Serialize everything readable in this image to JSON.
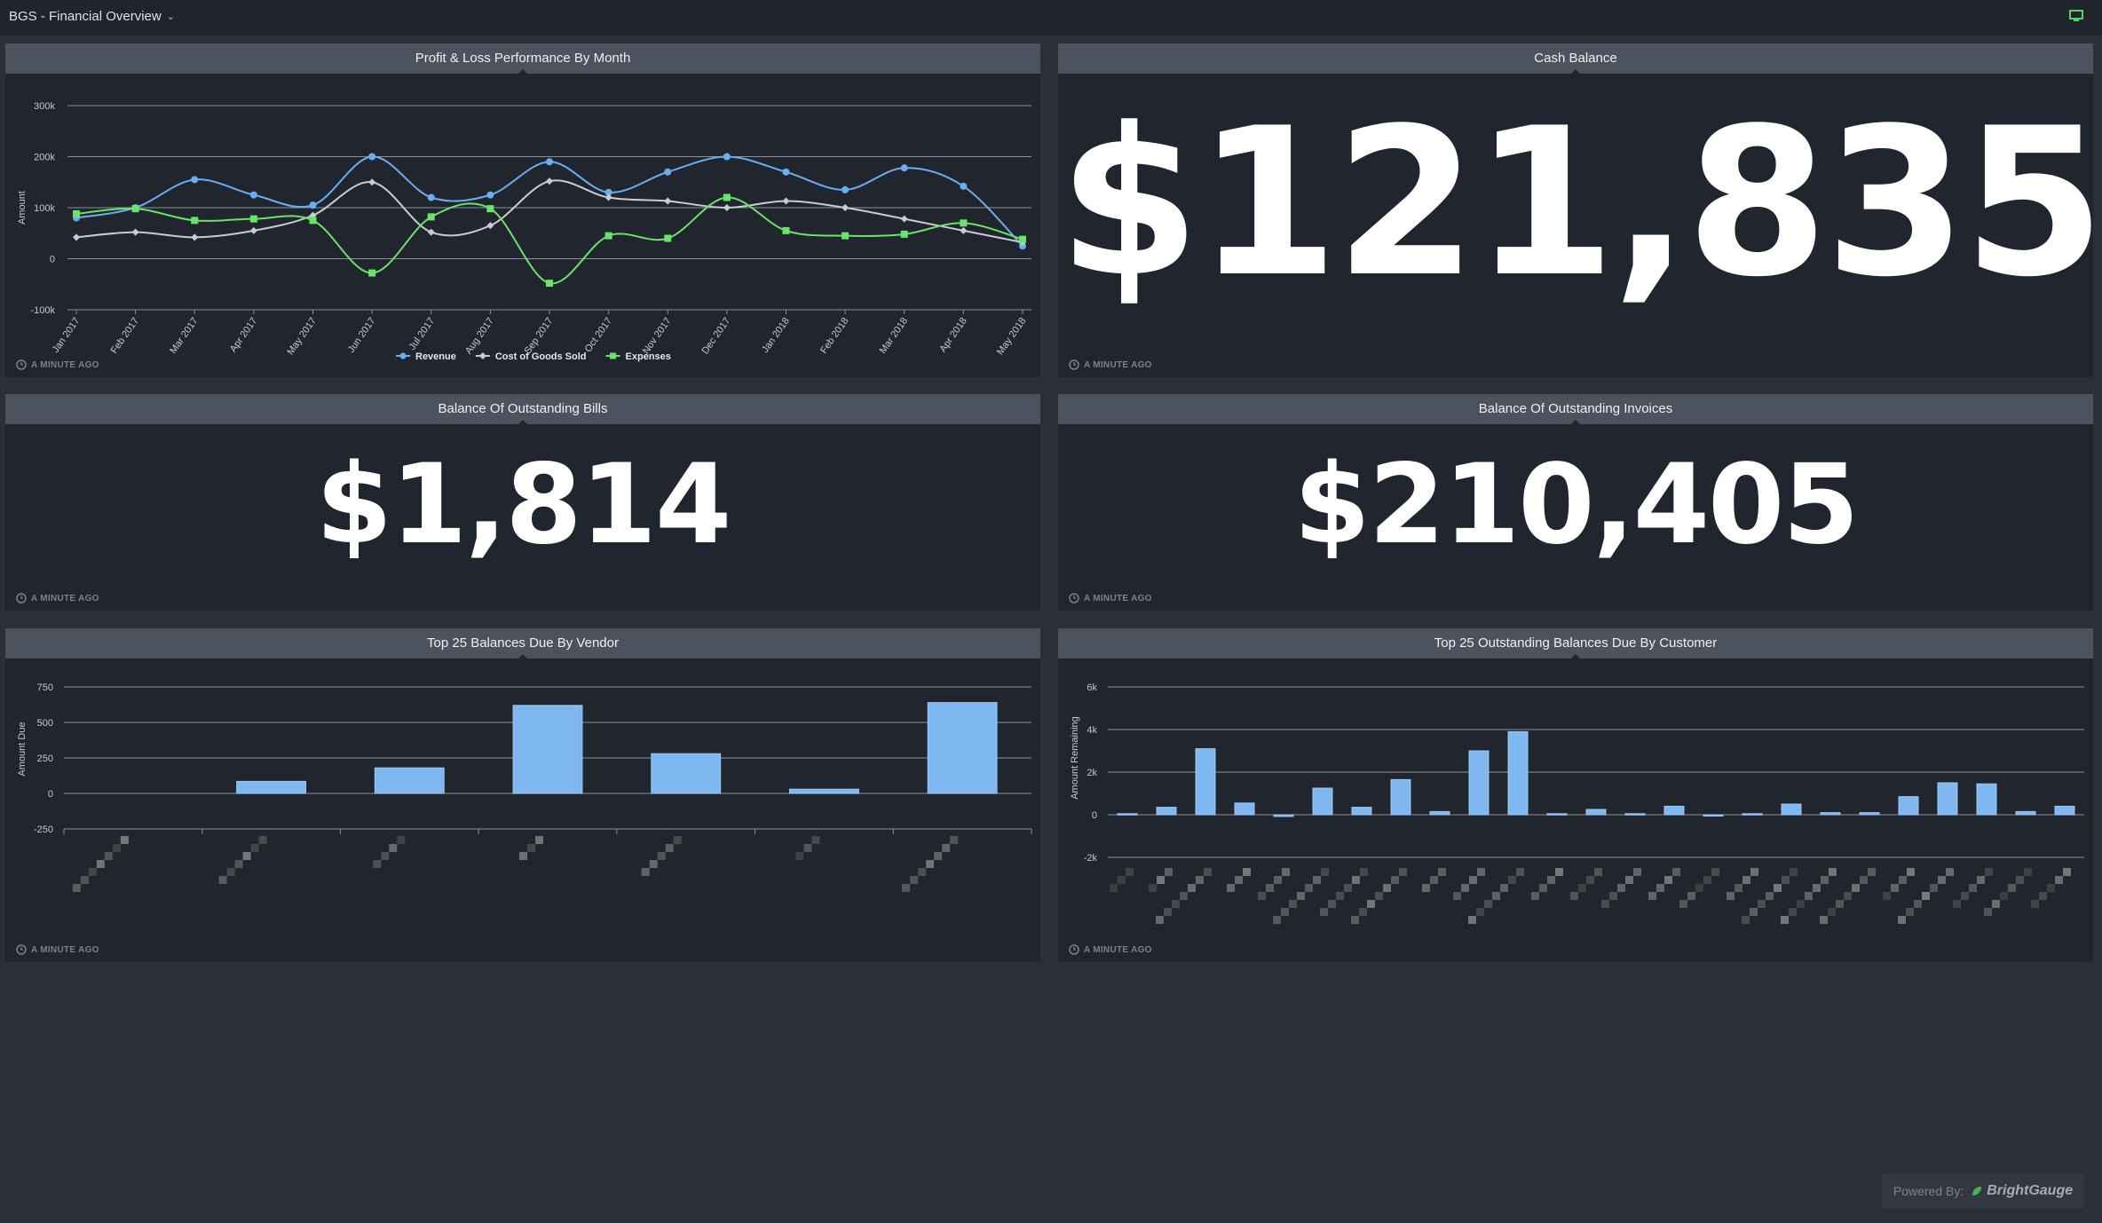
{
  "header": {
    "dashboard_title": "BGS - Financial Overview"
  },
  "colors": {
    "background": "#2b2f38",
    "panel": "#21252d",
    "panel_header": "#4d535e",
    "revenue": "#6aaef0",
    "cogs": "#c9ccd1",
    "expenses": "#6be36a",
    "bar": "#7fb8f0"
  },
  "panels": {
    "pnl": {
      "title": "Profit & Loss Performance By Month",
      "updated": "A MINUTE AGO"
    },
    "cash": {
      "title": "Cash Balance",
      "value": "$121,835",
      "updated": "A MINUTE AGO"
    },
    "bills": {
      "title": "Balance Of Outstanding Bills",
      "value": "$1,814",
      "updated": "A MINUTE AGO"
    },
    "invoices": {
      "title": "Balance Of Outstanding Invoices",
      "value": "$210,405",
      "updated": "A MINUTE AGO"
    },
    "vendor": {
      "title": "Top 25 Balances Due By Vendor",
      "updated": "A MINUTE AGO"
    },
    "customer": {
      "title": "Top 25 Outstanding Balances Due By Customer",
      "updated": "A MINUTE AGO"
    }
  },
  "footer": {
    "powered_by": "Powered By:",
    "brand": "BrightGauge"
  },
  "chart_data": [
    {
      "type": "line",
      "title": "Profit & Loss Performance By Month",
      "ylabel": "Amount",
      "ylim": [
        -100,
        300
      ],
      "yticks": [
        "300k",
        "200k",
        "100k",
        "0",
        "-100k"
      ],
      "ytick_values": [
        300,
        200,
        100,
        0,
        -100
      ],
      "categories": [
        "Jan 2017",
        "Feb 2017",
        "Mar 2017",
        "Apr 2017",
        "May 2017",
        "Jun 2017",
        "Jul 2017",
        "Aug 2017",
        "Sep 2017",
        "Oct 2017",
        "Nov 2017",
        "Dec 2017",
        "Jan 2018",
        "Feb 2018",
        "Mar 2018",
        "Apr 2018",
        "May 2018"
      ],
      "legend_position": "bottom",
      "series": [
        {
          "name": "Revenue",
          "color": "#6aaef0",
          "marker": "circle",
          "values": [
            80,
            100,
            155,
            125,
            105,
            200,
            120,
            125,
            190,
            130,
            170,
            200,
            170,
            135,
            178,
            142,
            25
          ]
        },
        {
          "name": "Cost of Goods Sold",
          "color": "#c9ccd1",
          "marker": "diamond",
          "values": [
            42,
            52,
            42,
            55,
            85,
            150,
            52,
            65,
            152,
            120,
            113,
            100,
            113,
            100,
            78,
            55,
            32
          ]
        },
        {
          "name": "Expenses",
          "color": "#6be36a",
          "marker": "square",
          "values": [
            88,
            98,
            75,
            78,
            75,
            -28,
            82,
            98,
            -48,
            45,
            40,
            120,
            55,
            45,
            48,
            70,
            38
          ]
        }
      ]
    },
    {
      "type": "bar",
      "title": "Top 25 Balances Due By Vendor",
      "ylabel": "Amount Due",
      "ylim": [
        -250,
        750
      ],
      "yticks": [
        "750",
        "500",
        "250",
        "0",
        "-250"
      ],
      "ytick_values": [
        750,
        500,
        250,
        0,
        -250
      ],
      "categories": [
        "",
        "",
        "",
        "",
        "",
        "",
        ""
      ],
      "values": [
        0,
        85,
        180,
        620,
        280,
        30,
        640
      ]
    },
    {
      "type": "bar",
      "title": "Top 25 Outstanding Balances Due By Customer",
      "ylabel": "Amount Remaining",
      "ylim": [
        -2,
        6
      ],
      "yticks": [
        "6k",
        "4k",
        "2k",
        "0",
        "-2k"
      ],
      "ytick_values": [
        6,
        4,
        2,
        0,
        -2
      ],
      "values": [
        0.05,
        0.35,
        3.1,
        0.55,
        -0.08,
        1.25,
        0.35,
        1.65,
        0.15,
        3.0,
        3.9,
        0.05,
        0.25,
        0.05,
        0.4,
        -0.05,
        0.05,
        0.5,
        0.1,
        0.1,
        0.85,
        1.5,
        1.45,
        0.15,
        0.4
      ]
    }
  ]
}
